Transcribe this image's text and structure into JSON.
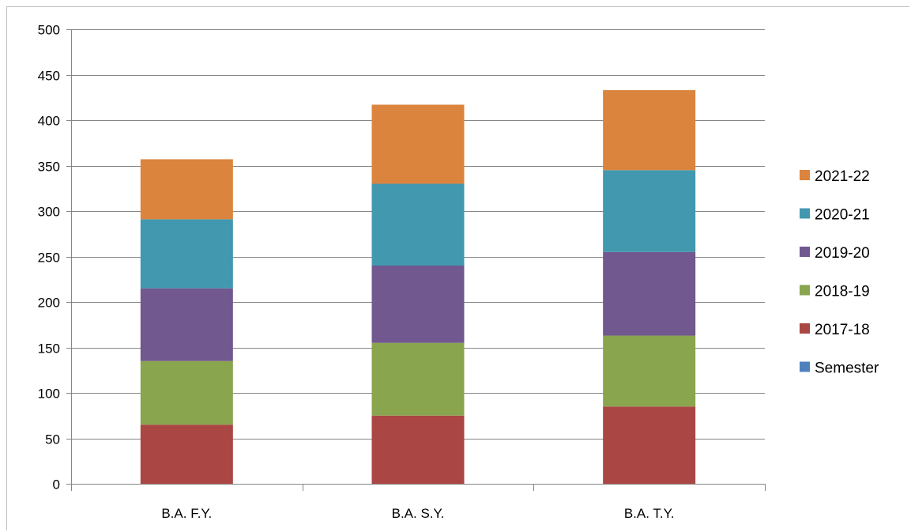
{
  "chart_data": {
    "type": "bar",
    "stacked": true,
    "title": "",
    "xlabel": "",
    "ylabel": "",
    "categories": [
      "B.A. F.Y.",
      "B.A. S.Y.",
      "B.A. T.Y."
    ],
    "ylim": [
      0,
      500
    ],
    "yticks": [
      "0",
      "50",
      "100",
      "150",
      "200",
      "250",
      "300",
      "350",
      "400",
      "450",
      "500"
    ],
    "grid": true,
    "legend_position": "right",
    "series": [
      {
        "name": "Semester",
        "color": "#4f81bd",
        "values": [
          0,
          0,
          0
        ]
      },
      {
        "name": "2017-18",
        "color": "#aa4643",
        "values": [
          65,
          75,
          85
        ]
      },
      {
        "name": "2018-19",
        "color": "#89a54e",
        "values": [
          70,
          80,
          78
        ]
      },
      {
        "name": "2019-20",
        "color": "#71588f",
        "values": [
          80,
          85,
          92
        ]
      },
      {
        "name": "2020-21",
        "color": "#4198af",
        "values": [
          76,
          90,
          90
        ]
      },
      {
        "name": "2021-22",
        "color": "#db843d",
        "values": [
          66,
          87,
          88
        ]
      }
    ]
  }
}
